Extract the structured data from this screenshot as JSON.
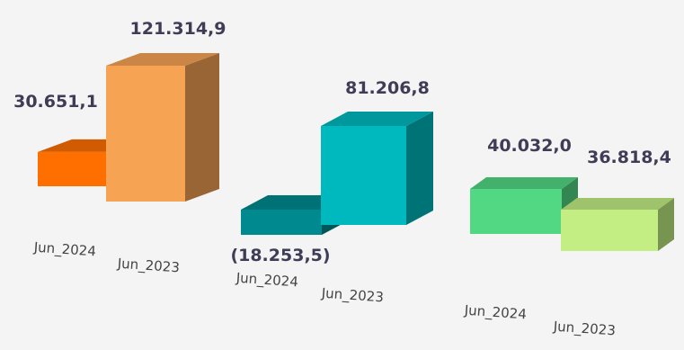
{
  "chart_data": {
    "type": "bar",
    "style": "3d-clustered",
    "title": "",
    "xlabel": "",
    "ylabel": "",
    "grid": false,
    "legend": "none",
    "groups": [
      {
        "bars": [
          {
            "category": "Jun_2024",
            "value": 30651.1,
            "label": "30.651,1",
            "color": "#ff6f00"
          },
          {
            "category": "Jun_2023",
            "value": 121314.9,
            "label": "121.314,9",
            "color": "#f7a354"
          }
        ]
      },
      {
        "bars": [
          {
            "category": "Jun_2024",
            "value": -18253.5,
            "label": "(18.253,5)",
            "color": "#008a8f"
          },
          {
            "category": "Jun_2023",
            "value": 81206.8,
            "label": "81.206,8",
            "color": "#00b9bf"
          }
        ]
      },
      {
        "bars": [
          {
            "category": "Jun_2024",
            "value": 40032.0,
            "label": "40.032,0",
            "color": "#52d882"
          },
          {
            "category": "Jun_2023",
            "value": 36818.4,
            "label": "36.818,4",
            "color": "#c2ee83"
          }
        ]
      }
    ]
  }
}
